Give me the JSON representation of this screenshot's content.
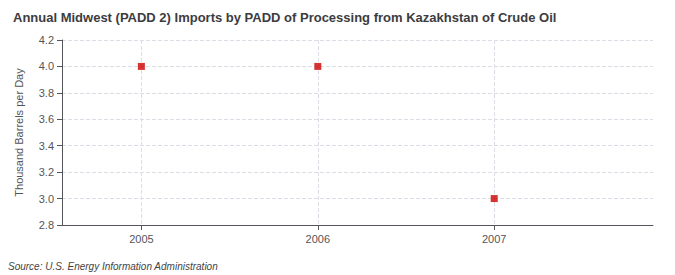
{
  "chart_data": {
    "type": "scatter",
    "title": "Annual Midwest (PADD 2) Imports by PADD of Processing from Kazakhstan of Crude Oil",
    "ylabel": "Thousand Barrels per Day",
    "x": [
      2005,
      2006,
      2007
    ],
    "values": [
      4.0,
      4.0,
      3.0
    ],
    "xlim": [
      2004.55,
      2007.9
    ],
    "ylim": [
      2.8,
      4.2
    ],
    "xticks": [
      2005,
      2006,
      2007
    ],
    "yticks": [
      2.8,
      {
        "value": 3.0,
        "label": "3.0"
      },
      3.2,
      3.4,
      3.6,
      3.8,
      {
        "value": 4.0,
        "label": "4.0"
      },
      4.2
    ],
    "grid": true,
    "color": "#cc0000",
    "marker": "square",
    "annotations": [
      "Source: U.S. Energy Information Administration"
    ]
  }
}
